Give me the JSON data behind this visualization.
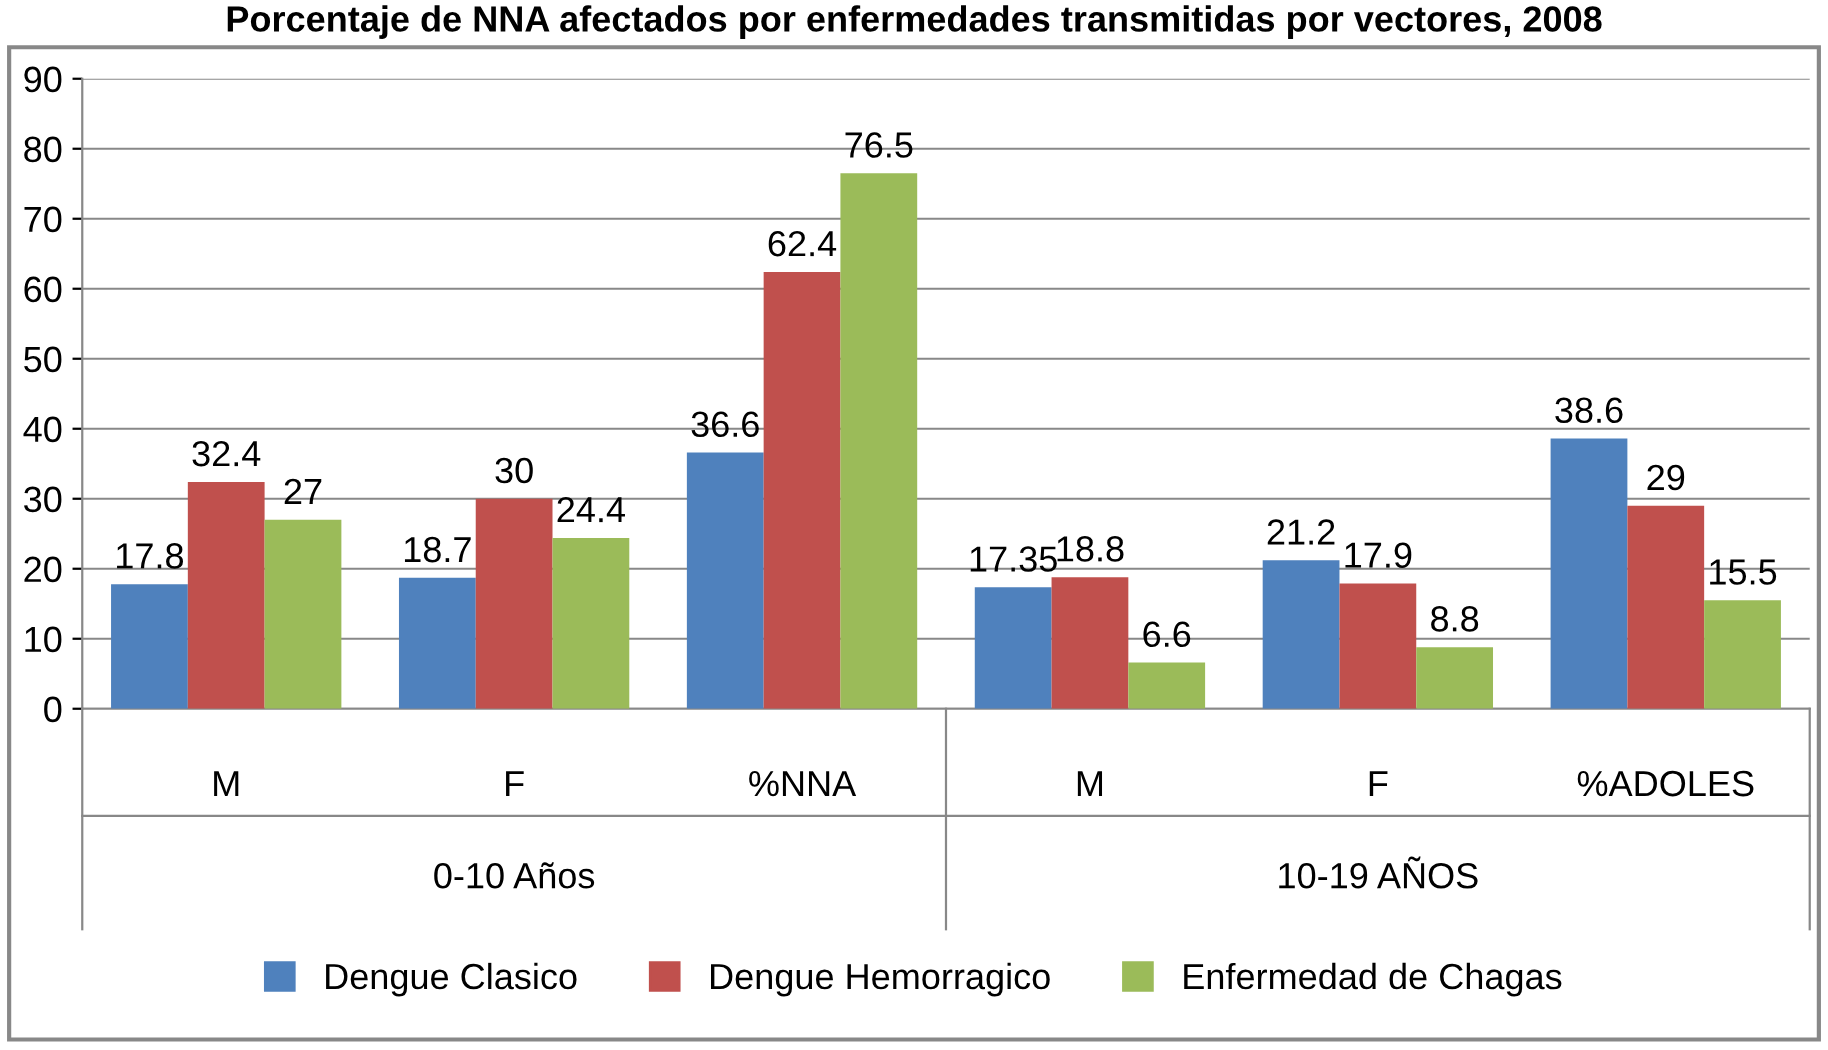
{
  "chart_data": {
    "type": "bar",
    "title": "Porcentaje de NNA afectados por enfermedades transmitidas por vectores, 2008",
    "categories": [
      "M",
      "F",
      "%NNA",
      "M",
      "F",
      "%ADOLES"
    ],
    "series": [
      {
        "name": "Dengue Clasico",
        "color": "#4f81bd",
        "values": [
          17.8,
          18.7,
          36.6,
          17.35,
          21.2,
          38.6
        ]
      },
      {
        "name": "Dengue Hemorragico",
        "color": "#c0504d",
        "values": [
          32.4,
          30,
          62.4,
          18.8,
          17.9,
          29
        ]
      },
      {
        "name": "Enfermedad de Chagas",
        "color": "#9bbb59",
        "values": [
          27,
          24.4,
          76.5,
          6.6,
          8.8,
          15.5
        ]
      }
    ],
    "annotations": [
      "0-10 Años",
      "10-19 AÑOS"
    ],
    "ylim": [
      0,
      90
    ],
    "yticks": [
      0,
      10,
      20,
      30,
      40,
      50,
      60,
      70,
      80,
      90
    ],
    "grid": "y",
    "legend": "bottom",
    "data_labels": true
  }
}
